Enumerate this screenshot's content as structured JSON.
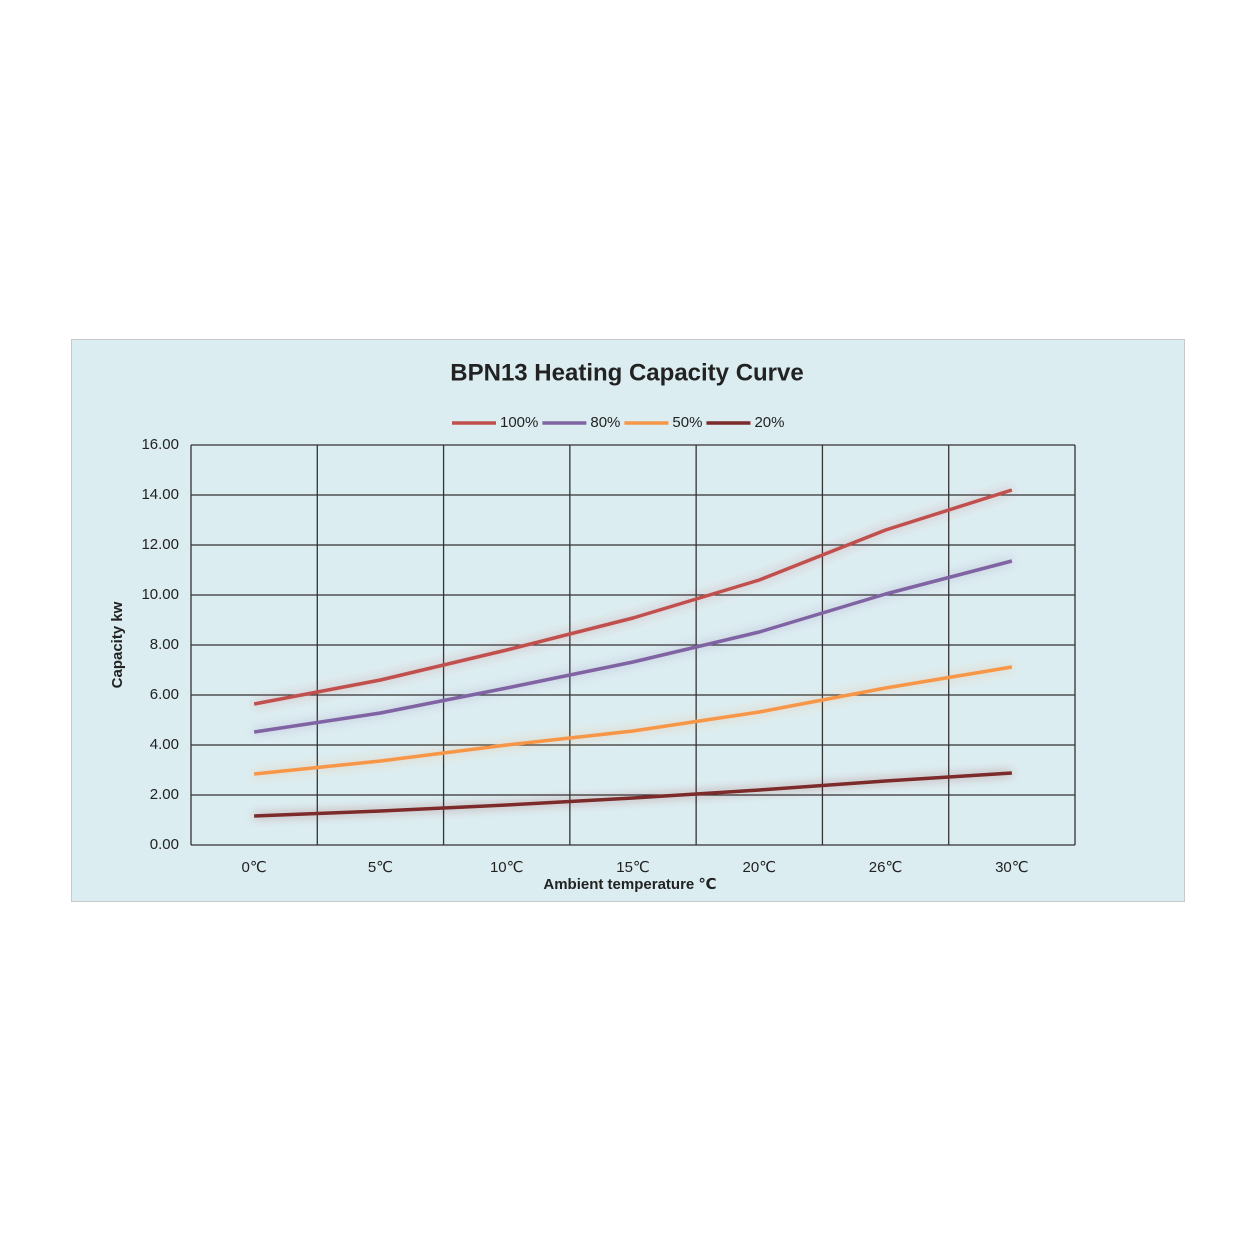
{
  "chart_data": {
    "type": "line",
    "title": "BPN13 Heating Capacity Curve",
    "x_label": "Ambient temperature ℃",
    "y_label": "Capacity kw",
    "categories": [
      "0℃",
      "5℃",
      "10℃",
      "15℃",
      "20℃",
      "26℃",
      "30℃"
    ],
    "series": [
      {
        "name": "100%",
        "color": "#c0504d",
        "values": [
          5.64,
          6.6,
          7.8,
          9.08,
          10.6,
          12.6,
          14.2
        ]
      },
      {
        "name": "80%",
        "color": "#8064a2",
        "values": [
          4.52,
          5.28,
          6.28,
          7.32,
          8.52,
          10.04,
          11.36
        ]
      },
      {
        "name": "50%",
        "color": "#f79646",
        "values": [
          2.84,
          3.36,
          4.0,
          4.56,
          5.32,
          6.28,
          7.12
        ]
      },
      {
        "name": "20%",
        "color": "#7b2a2a",
        "values": [
          1.16,
          1.36,
          1.6,
          1.88,
          2.2,
          2.56,
          2.88
        ]
      }
    ],
    "ylim": [
      0,
      16
    ],
    "yticks": [
      {
        "value": 0,
        "label": "0.00"
      },
      {
        "value": 2,
        "label": "2.00"
      },
      {
        "value": 4,
        "label": "4.00"
      },
      {
        "value": 6,
        "label": "6.00"
      },
      {
        "value": 8,
        "label": "8.00"
      },
      {
        "value": 10,
        "label": "10.00"
      },
      {
        "value": 12,
        "label": "12.00"
      },
      {
        "value": 14,
        "label": "14.00"
      },
      {
        "value": 16,
        "label": "16.00"
      }
    ],
    "grid": true,
    "legend": "top"
  }
}
